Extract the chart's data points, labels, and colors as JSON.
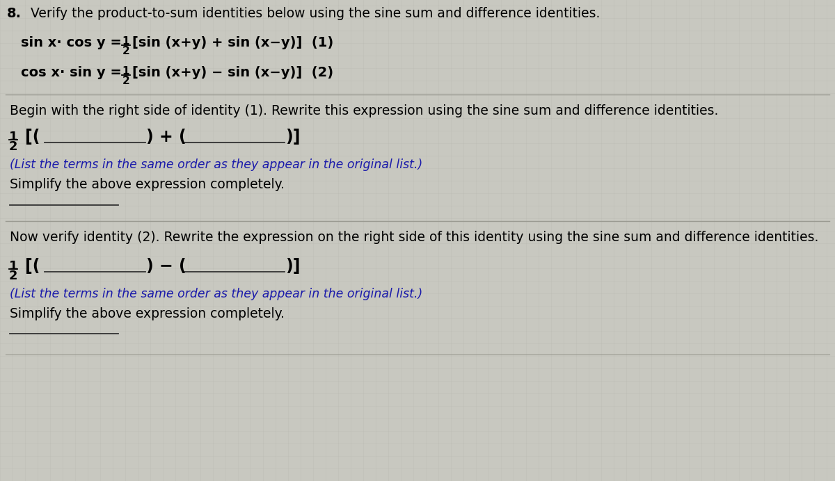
{
  "bg_color": "#c8c8c0",
  "grid_color": "#b8b8b0",
  "text_color": "#000000",
  "blue_color": "#1a1aaa",
  "title_num": "8.",
  "title_text": "  Verify the product-to-sum identities below using the sine sum and difference identities.",
  "id1_left": "sin x· cos y =",
  "id1_right": "[sin (x+y) + sin (x−y)]  (1)",
  "id2_left": "cos x· sin y =",
  "id2_right": "[sin (x+y) − sin (x−y)]  (2)",
  "prompt1": "Begin with the right side of identity (1). Rewrite this expression using the sine sum and difference identities.",
  "note1": "(List the terms in the same order as they appear in the original list.)",
  "simplify1": "Simplify the above expression completely.",
  "prompt2": "Now verify identity (2). Rewrite the expression on the right side of this identity using the sine sum and difference identities.",
  "note2": "(List the terms in the same order as they appear in the original list.)",
  "simplify2": "Simplify the above expression completely.",
  "sep_color": "#999990",
  "line_color": "#333333"
}
